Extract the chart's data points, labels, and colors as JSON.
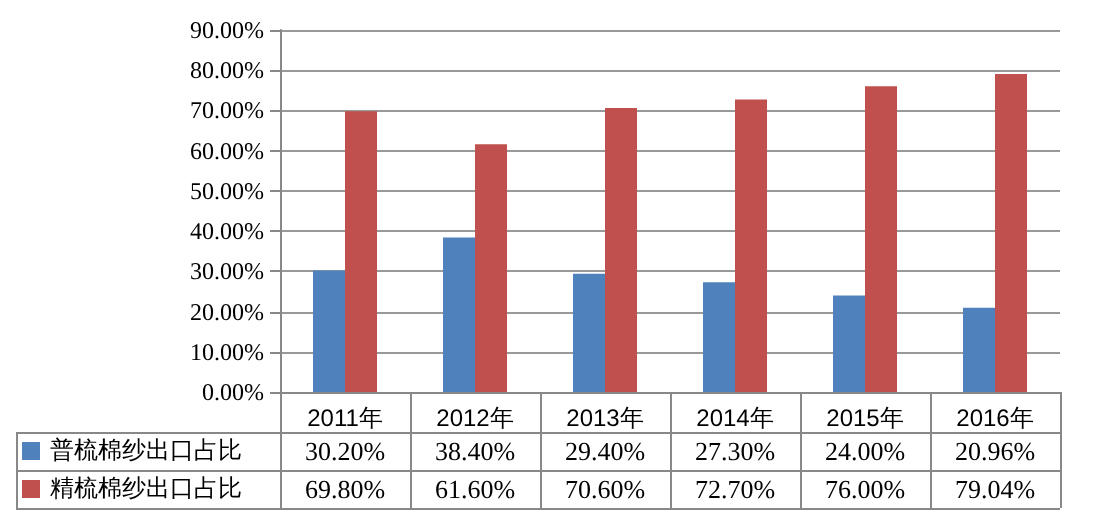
{
  "chart_data": {
    "type": "bar",
    "categories": [
      "2011年",
      "2012年",
      "2013年",
      "2014年",
      "2015年",
      "2016年"
    ],
    "series": [
      {
        "name": "普梳棉纱出口占比",
        "color": "#4f81bd",
        "values": [
          30.2,
          38.4,
          29.4,
          27.3,
          24.0,
          20.96
        ],
        "value_labels": [
          "30.20%",
          "38.40%",
          "29.40%",
          "27.30%",
          "24.00%",
          "20.96%"
        ]
      },
      {
        "name": "精梳棉纱出口占比",
        "color": "#c0504d",
        "values": [
          69.8,
          61.6,
          70.6,
          72.7,
          76.0,
          79.04
        ],
        "value_labels": [
          "69.80%",
          "61.60%",
          "70.60%",
          "72.70%",
          "76.00%",
          "79.04%"
        ]
      }
    ],
    "ylim": [
      0,
      90
    ],
    "yticks": [
      {
        "value": 0,
        "label": "0.00%"
      },
      {
        "value": 10,
        "label": "10.00%"
      },
      {
        "value": 20,
        "label": "20.00%"
      },
      {
        "value": 30,
        "label": "30.00%"
      },
      {
        "value": 40,
        "label": "40.00%"
      },
      {
        "value": 50,
        "label": "50.00%"
      },
      {
        "value": 60,
        "label": "60.00%"
      },
      {
        "value": 70,
        "label": "70.00%"
      },
      {
        "value": 80,
        "label": "80.00%"
      },
      {
        "value": 90,
        "label": "90.00%"
      }
    ],
    "grid": "y",
    "legend": "bottom"
  }
}
